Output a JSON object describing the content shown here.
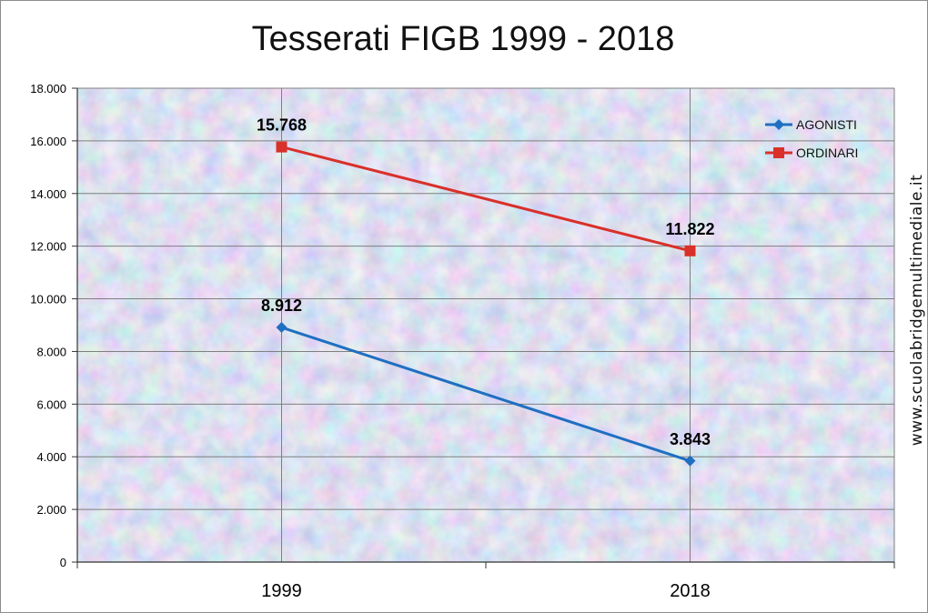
{
  "chart_data": {
    "type": "line",
    "title": "Tesserati  FIGB  1999 - 2018",
    "categories": [
      "1999",
      "2018"
    ],
    "ylim": [
      0,
      18000
    ],
    "yticks": [
      0,
      2000,
      4000,
      6000,
      8000,
      10000,
      12000,
      14000,
      16000,
      18000
    ],
    "ytick_labels": [
      "0",
      "2.000",
      "4.000",
      "6.000",
      "8.000",
      "10.000",
      "12.000",
      "14.000",
      "16.000",
      "18.000"
    ],
    "grid": true,
    "legend_position": "top-right",
    "series": [
      {
        "name": "AGONISTI",
        "color": "#1f6fc1",
        "marker": "diamond",
        "values": [
          8912,
          3843
        ],
        "labels": [
          "8.912",
          "3.843"
        ]
      },
      {
        "name": "ORDINARI",
        "color": "#d9302a",
        "marker": "square",
        "values": [
          15768,
          11822
        ],
        "labels": [
          "15.768",
          "11.822"
        ]
      }
    ]
  },
  "watermark": "www.scuolabridgemultimediale.it"
}
